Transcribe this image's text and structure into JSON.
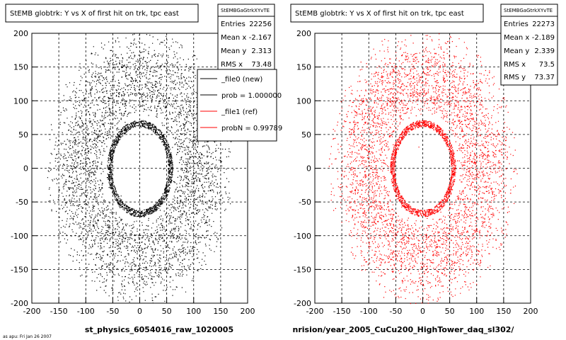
{
  "chart_data": [
    {
      "type": "scatter",
      "title": "StEMB globtrk: Y vs X of first hit on trk, tpc east",
      "stats": {
        "name": "StEMBGaGtrkXYvTE",
        "entries_label": "Entries",
        "entries": "22256",
        "meanx_label": "Mean x",
        "meanx": "-2.167",
        "meany_label": "Mean y",
        "meany": "2.313",
        "rmsx_label": "RMS x",
        "rmsx": "73.48"
      },
      "legend": [
        {
          "label": "_file0 (new)",
          "color": "#000000"
        },
        {
          "label": "prob = 1.000000",
          "color": "#000000"
        },
        {
          "label": "_file1 (ref)",
          "color": "#ff0000"
        },
        {
          "label": "probN = 0.99789",
          "color": "#ff0000"
        }
      ],
      "xlabel": "st_physics_6054016_raw_1020005",
      "xlim": [
        -200,
        200
      ],
      "ylim": [
        -200,
        200
      ],
      "xticks": [
        "-200",
        "-150",
        "-100",
        "-50",
        "0",
        "50",
        "100",
        "150",
        "200"
      ],
      "yticks": [
        "200",
        "150",
        "100",
        "50",
        "0",
        "-50",
        "-100",
        "-150",
        "-200"
      ],
      "series_color": "#000000",
      "grid": true
    },
    {
      "type": "scatter",
      "title": "StEMB globtrk: Y vs X of first hit on trk, tpc east",
      "stats": {
        "name": "StEMBGaGtrkXYvTE",
        "entries_label": "Entries",
        "entries": "22273",
        "meanx_label": "Mean x",
        "meanx": "-2.189",
        "meany_label": "Mean y",
        "meany": "2.339",
        "rmsx_label": "RMS x",
        "rmsx": "73.5",
        "rmsy_label": "RMS y",
        "rmsy": "73.37"
      },
      "xlabel": "nrision/year_2005_CuCu200_HighTower_daq_sl302/",
      "xlim": [
        -200,
        200
      ],
      "ylim": [
        -200,
        200
      ],
      "xticks": [
        "-200",
        "-150",
        "-100",
        "-50",
        "0",
        "50",
        "100",
        "150",
        "200"
      ],
      "yticks": [
        "200",
        "150",
        "100",
        "50",
        "0",
        "-50",
        "-100",
        "-150",
        "-200"
      ],
      "series_color": "#ff0000",
      "grid": true
    }
  ],
  "footer": "as apu: Fri Jan 26 2007"
}
